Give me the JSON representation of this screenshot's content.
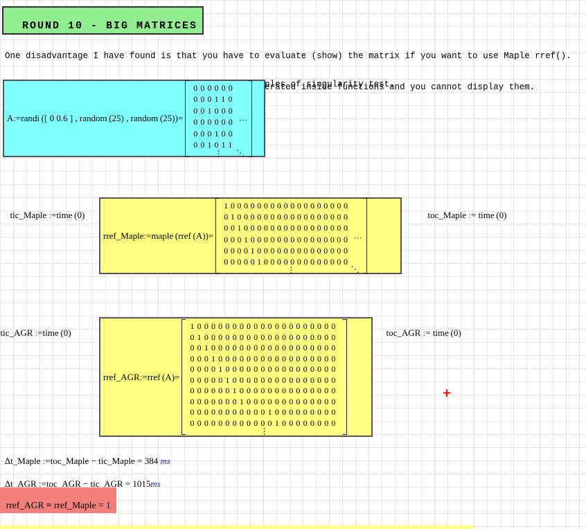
{
  "header": {
    "title": "ROUND 10 - BIG MATRICES"
  },
  "paragraphs": {
    "p1_line1": "One disadvantage I have found is that you have to evaluate (show) the matrix if you want to use Maple rref().",
    "p1_line2": "This is an inconvenient when you have matrices generated inside functions and you cannot display them.",
    "p2": "Range for numbers [0 0.6] generates very good examples of singularity test."
  },
  "ops": {
    "colon": ":",
    "eq": "=",
    "minus": "−"
  },
  "regions": {
    "a_def": {
      "lhs": "A",
      "expr": "randi ([ 0 0.6 ] , random (25) , random (25))"
    },
    "tic_maple": {
      "lhs": "tic_Maple",
      "expr": "time (0)"
    },
    "toc_maple": {
      "lhs": "toc_Maple",
      "expr": "time (0)"
    },
    "rref_maple": {
      "lhs": "rref_Maple",
      "expr": "maple (rref (A))"
    },
    "tic_agr": {
      "lhs": "tic_AGR",
      "expr": "time (0)"
    },
    "toc_agr": {
      "lhs": "toc_AGR",
      "expr": "time (0)"
    },
    "rref_agr": {
      "lhs": "rref_AGR",
      "expr": "rref (A)"
    },
    "dt_maple": {
      "lhs": "Δt_Maple",
      "expr": "toc_Maple − tic_Maple",
      "value": "384",
      "unit": "ms"
    },
    "dt_agr": {
      "lhs": "Δt_AGR",
      "expr": "toc_AGR − tic_AGR",
      "value": "1015",
      "unit": "ms"
    },
    "compare": {
      "lhs": "rref_AGR",
      "rhs": "rref_Maple",
      "result": "1"
    }
  },
  "matrices": {
    "A": {
      "rows": [
        "000000",
        "000110",
        "001000",
        "000000",
        "000100",
        "001011"
      ],
      "dots_right": true,
      "dots_bottom": true,
      "dots_corner": true
    },
    "maple": {
      "rows": [
        "1000000000000000000",
        "0100000000000000000",
        "0010000000000000000",
        "0001000000000000000",
        "0000100000000000000",
        "0000010000000000000"
      ],
      "dots_right": true,
      "dots_bottom": true,
      "dots_corner": true
    },
    "agr": {
      "rows": [
        "100000000000000000000",
        "010000000000000000000",
        "001000000000000000000",
        "000100000000000000000",
        "000010000000000000000",
        "000001000000000000000",
        "000000100000000000000",
        "000000010000000000000",
        "000000000001000000000",
        "000000000000100000000"
      ],
      "dots_bottom": true
    }
  },
  "glyphs": {
    "dots_right": "…",
    "dots_bottom": "⋮",
    "dots_corner": "⋱",
    "cursor_plus": "+"
  }
}
